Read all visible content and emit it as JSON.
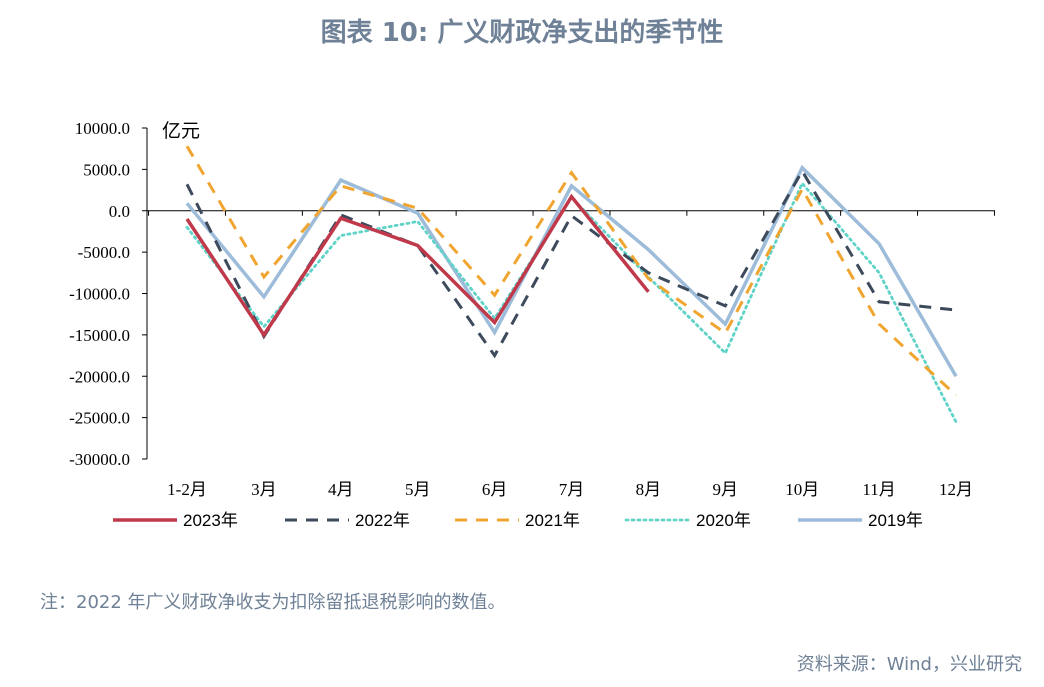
{
  "title": "图表 10: 广义财政净支出的季节性",
  "note": "注：2022 年广义财政净收支为扣除留抵退税影响的数值。",
  "source": "资料来源：Wind，兴业研究",
  "chart_data": {
    "type": "line",
    "unit_label": "亿元",
    "categories": [
      "1-2月",
      "3月",
      "4月",
      "5月",
      "6月",
      "7月",
      "8月",
      "9月",
      "10月",
      "11月",
      "12月"
    ],
    "ylim": [
      -30000,
      10000
    ],
    "yticks": [
      10000,
      5000,
      0,
      -5000,
      -10000,
      -15000,
      -20000,
      -25000,
      -30000
    ],
    "ytick_labels": [
      "10000.0",
      "5000.0",
      "0.0",
      "-5000.0",
      "-10000.0",
      "-15000.0",
      "-20000.0",
      "-25000.0",
      "-30000.0"
    ],
    "legend_position": "bottom",
    "grid": false,
    "series": [
      {
        "name": "2023年",
        "color": "#c0394b",
        "style": "solid",
        "values": [
          -1000,
          -15000,
          -900,
          -4200,
          -13500,
          1700,
          -9800,
          null,
          null,
          null,
          null
        ]
      },
      {
        "name": "2022年",
        "color": "#3d4a5c",
        "style": "dash",
        "values": [
          3200,
          -15200,
          -500,
          -4200,
          -17500,
          -600,
          -7500,
          -11500,
          4800,
          -11000,
          -12000
        ]
      },
      {
        "name": "2021年",
        "color": "#f0a530",
        "style": "dash",
        "values": [
          7800,
          -8000,
          3000,
          300,
          -10200,
          4600,
          -8200,
          -14800,
          2600,
          -13700,
          -22300
        ]
      },
      {
        "name": "2020年",
        "color": "#5fd3c8",
        "style": "dot",
        "values": [
          -2000,
          -14000,
          -3000,
          -1300,
          -13000,
          1600,
          -8000,
          -17200,
          3300,
          -7500,
          -25500
        ]
      },
      {
        "name": "2019年",
        "color": "#9dbcd9",
        "style": "solid",
        "values": [
          900,
          -10400,
          3700,
          -300,
          -14700,
          3000,
          -4700,
          -13700,
          5200,
          -4000,
          -20000
        ]
      }
    ]
  }
}
